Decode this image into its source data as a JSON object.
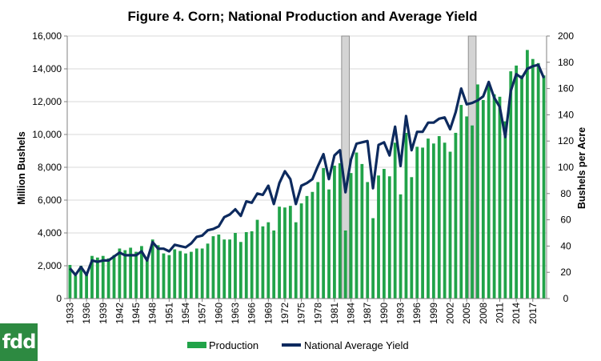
{
  "chart_data": {
    "type": "bar",
    "title": "Figure 4. Corn; National Production and Average Yield",
    "ylabel": "Million Bushels",
    "y2label": "Bushels per Acre",
    "ylim": [
      0,
      16000
    ],
    "y2lim": [
      0,
      200
    ],
    "yticks": [
      "0",
      "2,000",
      "4,000",
      "6,000",
      "8,000",
      "10,000",
      "12,000",
      "14,000",
      "16,000"
    ],
    "y2ticks": [
      "0",
      "20",
      "40",
      "60",
      "80",
      "100",
      "120",
      "140",
      "160",
      "180",
      "200"
    ],
    "xtick_labels": [
      "1933",
      "1936",
      "1939",
      "1942",
      "1945",
      "1948",
      "1951",
      "1954",
      "1957",
      "1960",
      "1963",
      "1966",
      "1969",
      "1972",
      "1975",
      "1978",
      "1981",
      "1984",
      "1987",
      "1990",
      "1993",
      "1996",
      "1999",
      "2002",
      "2005",
      "2008",
      "2011",
      "2014",
      "2017"
    ],
    "x": [
      1933,
      1934,
      1935,
      1936,
      1937,
      1938,
      1939,
      1940,
      1941,
      1942,
      1943,
      1944,
      1945,
      1946,
      1947,
      1948,
      1949,
      1950,
      1951,
      1952,
      1953,
      1954,
      1955,
      1956,
      1957,
      1958,
      1959,
      1960,
      1961,
      1962,
      1963,
      1964,
      1965,
      1966,
      1967,
      1968,
      1969,
      1970,
      1971,
      1972,
      1973,
      1974,
      1975,
      1976,
      1977,
      1978,
      1979,
      1980,
      1981,
      1982,
      1983,
      1984,
      1985,
      1986,
      1987,
      1988,
      1989,
      1990,
      1991,
      1992,
      1993,
      1994,
      1995,
      1996,
      1997,
      1998,
      1999,
      2000,
      2001,
      2002,
      2003,
      2004,
      2005,
      2006,
      2007,
      2008,
      2009,
      2010,
      2011,
      2012,
      2013,
      2014,
      2015,
      2016,
      2017,
      2018,
      2019
    ],
    "shaded_years": [
      1983,
      2006
    ],
    "series": [
      {
        "name": "Production",
        "type": "bar",
        "color": "#21a349",
        "axis": "left",
        "values": [
          2050,
          1400,
          2000,
          1500,
          2600,
          2500,
          2600,
          2450,
          2650,
          3050,
          2950,
          3100,
          2850,
          3200,
          2350,
          3600,
          3250,
          2750,
          2650,
          3000,
          2900,
          2750,
          2850,
          3050,
          3050,
          3350,
          3800,
          3900,
          3600,
          3600,
          4000,
          3450,
          4050,
          4100,
          4800,
          4400,
          4650,
          4150,
          5600,
          5550,
          5650,
          4650,
          5800,
          6250,
          6500,
          7100,
          7950,
          6650,
          8100,
          8250,
          4150,
          7650,
          8900,
          8200,
          7100,
          4900,
          7500,
          7900,
          7450,
          9500,
          6350,
          10100,
          7400,
          9250,
          9200,
          9750,
          9450,
          9900,
          9500,
          8950,
          10100,
          11800,
          11100,
          10550,
          13050,
          12100,
          13100,
          12450,
          12300,
          10800,
          13850,
          14200,
          13600,
          15150,
          14600,
          14350,
          13600
        ]
      },
      {
        "name": "National Average Yield",
        "type": "line",
        "color": "#0d2a5e",
        "axis": "right",
        "values": [
          23,
          18,
          24,
          18,
          29,
          28,
          29,
          29,
          32,
          35,
          33,
          33,
          33,
          36,
          29,
          43,
          38,
          38,
          36,
          41,
          40,
          39,
          42,
          47,
          48,
          52,
          53,
          55,
          62,
          64,
          68,
          63,
          74,
          73,
          80,
          79,
          86,
          72,
          88,
          97,
          91,
          72,
          86,
          88,
          91,
          101,
          110,
          91,
          109,
          113,
          81,
          106,
          118,
          119,
          120,
          84,
          117,
          119,
          109,
          131,
          101,
          139,
          113,
          127,
          127,
          134,
          134,
          137,
          138,
          129,
          142,
          160,
          148,
          149,
          151,
          154,
          165,
          153,
          146,
          123,
          158,
          171,
          168,
          175,
          177,
          178,
          168
        ]
      }
    ],
    "legend": "bottom-center"
  },
  "logo": {
    "text": "fdd"
  }
}
